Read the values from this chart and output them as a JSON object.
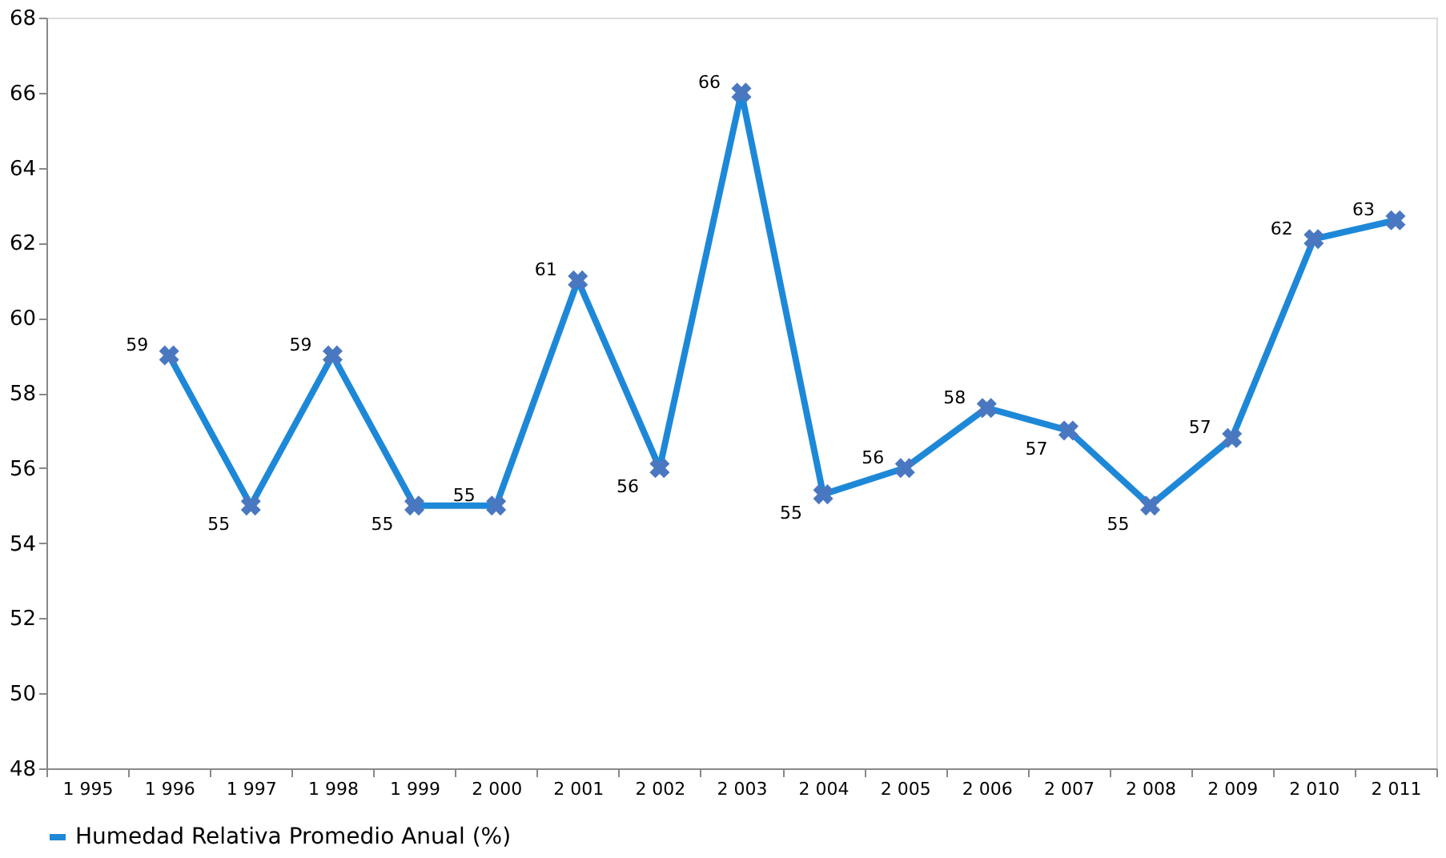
{
  "chart_data": {
    "type": "line",
    "categories": [
      "1 995",
      "1 996",
      "1 997",
      "1 998",
      "1 999",
      "2 000",
      "2 001",
      "2 002",
      "2 003",
      "2 004",
      "2 005",
      "2 006",
      "2 007",
      "2 008",
      "2 009",
      "2 010",
      "2 011"
    ],
    "series": [
      {
        "name": "Humedad Relativa Promedio Anual (%)",
        "color": "#1e88d8",
        "values": [
          null,
          59,
          55,
          59,
          55,
          55,
          61,
          56,
          66,
          55.3,
          56,
          57.6,
          57,
          55,
          56.8,
          62.1,
          62.6
        ],
        "value_labels": [
          null,
          "59",
          "55",
          "59",
          "55",
          "55",
          "61",
          "56",
          "66",
          "55",
          "56",
          "58",
          "57",
          "55",
          "57",
          "62",
          "63"
        ]
      }
    ],
    "ylim": [
      48,
      68
    ],
    "yticks": [
      48,
      50,
      52,
      54,
      56,
      58,
      60,
      62,
      64,
      66,
      68
    ],
    "grid": false,
    "legend": "bottom",
    "marker": "cross",
    "line_style": "solid"
  }
}
